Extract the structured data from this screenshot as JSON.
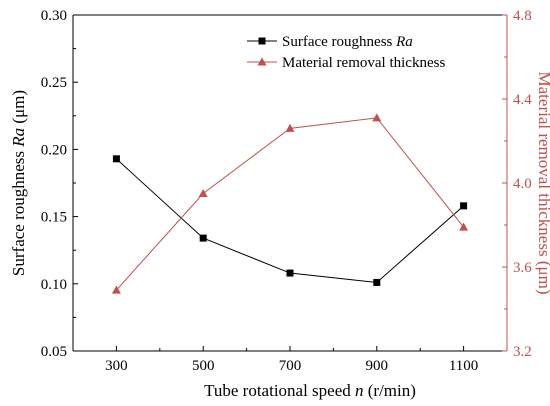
{
  "chart_data": {
    "type": "line",
    "x": [
      300,
      500,
      700,
      900,
      1100
    ],
    "xlabel_prefix": "Tube rotational speed ",
    "xlabel_var": "n",
    "xlabel_suffix": " (r/min)",
    "ylabel_left_prefix": "Surface roughness ",
    "ylabel_left_var": "Ra",
    "ylabel_left_suffix": " (μm)",
    "ylabel_right": "Material removal thickness (μm)",
    "ylim_left": [
      0.05,
      0.3
    ],
    "ylim_right": [
      3.2,
      4.8
    ],
    "yticks_left": [
      "0.05",
      "0.10",
      "0.15",
      "0.20",
      "0.25",
      "0.30"
    ],
    "yticks_right": [
      "3.2",
      "3.6",
      "4.0",
      "4.4",
      "4.8"
    ],
    "xticks": [
      "300",
      "500",
      "700",
      "900",
      "1100"
    ],
    "grid": false,
    "legend_position": "top-right",
    "series": [
      {
        "name_prefix": "Surface roughness ",
        "name_var": "Ra",
        "axis": "left",
        "marker": "square",
        "color": "#000000",
        "values": [
          0.193,
          0.134,
          0.108,
          0.101,
          0.158
        ]
      },
      {
        "name": "Material removal thickness",
        "axis": "right",
        "marker": "triangle",
        "color": "#c0504d",
        "values": [
          3.49,
          3.95,
          4.26,
          4.31,
          3.79
        ]
      }
    ],
    "colors": {
      "left_axis": "#000000",
      "right_axis": "#c0504d",
      "marker_fill_right": "#c0504d"
    }
  }
}
